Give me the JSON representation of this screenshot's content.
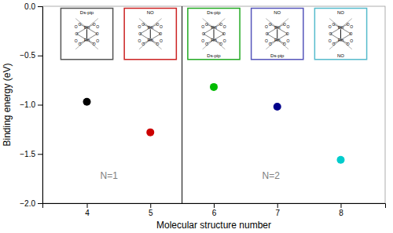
{
  "chart_data": {
    "type": "scatter",
    "xlabel": "Molecular structure number",
    "ylabel": "Binding energy (eV)",
    "x": [
      4,
      5,
      6,
      7,
      8
    ],
    "values": [
      -0.97,
      -1.28,
      -0.82,
      -1.02,
      -1.56
    ],
    "colors": [
      "black",
      "#cc0000",
      "#00bb00",
      "#00008b",
      "#00cccc"
    ],
    "xlim": [
      3.3,
      8.7
    ],
    "ylim": [
      -2.0,
      0.0
    ],
    "xticks": [
      4,
      5,
      6,
      7,
      8
    ],
    "yticks": [
      {
        "value": 0.0,
        "label": "0.0"
      },
      {
        "value": -0.5,
        "label": "−0.5"
      },
      {
        "value": -1.0,
        "label": "−1.0"
      },
      {
        "value": -1.5,
        "label": "−1.5"
      },
      {
        "value": -2.0,
        "label": "−2.0"
      }
    ],
    "divider_x": 5.5,
    "annotations": [
      {
        "text": "N=1",
        "x": 4.35,
        "y": -1.72
      },
      {
        "text": "N=2",
        "x": 6.9,
        "y": -1.72
      }
    ],
    "inset_metal": "Rh",
    "inset_ligand": "O",
    "insets": [
      {
        "x": 4.0,
        "color": "#555555",
        "label_top": "Ds-pip"
      },
      {
        "x": 5.0,
        "color": "#cc2222",
        "label_top": "NO"
      },
      {
        "x": 6.0,
        "color": "#22aa22",
        "label_top": "Ds-pip",
        "label_bottom": "Ds-pip"
      },
      {
        "x": 7.0,
        "color": "#5555bb",
        "label_top": "NO",
        "label_bottom": "Ds-pip"
      },
      {
        "x": 8.0,
        "color": "#55bbcc",
        "label_top": "NO",
        "label_bottom": "NO"
      }
    ]
  }
}
